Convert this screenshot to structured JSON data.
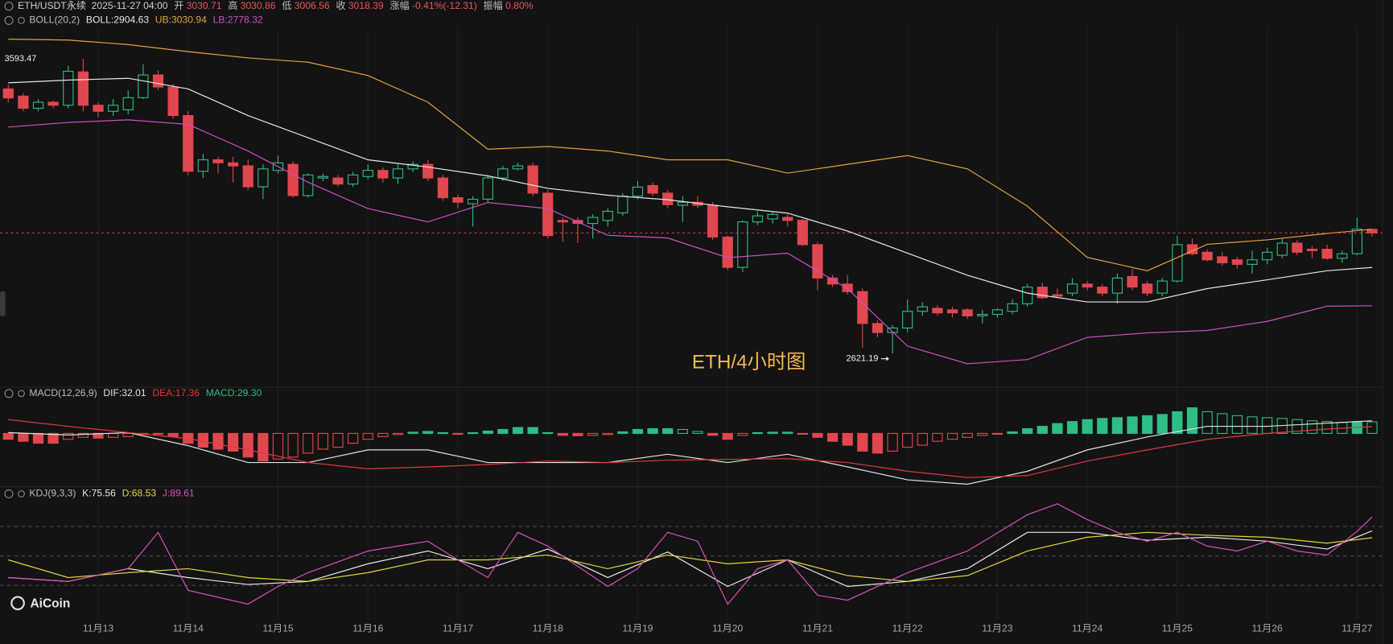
{
  "header": {
    "symbol": "ETH/USDT永续",
    "time": "2025-11-27 04:00",
    "fields": [
      {
        "label": "开",
        "value": "3030.71"
      },
      {
        "label": "高",
        "value": "3030.86"
      },
      {
        "label": "低",
        "value": "3006.56"
      },
      {
        "label": "收",
        "value": "3018.39"
      },
      {
        "label": "涨幅",
        "value": "-0.41%(-12.31)"
      },
      {
        "label": "振幅",
        "value": "0.80%"
      }
    ]
  },
  "logo": "AiCoin",
  "chart_data": [
    {
      "type": "candlestick",
      "indicator": "BOLL(20,2)",
      "watermark": "ETH/4小时图",
      "categories": [
        null,
        null,
        null,
        null,
        null,
        null,
        "11月13",
        null,
        null,
        null,
        null,
        null,
        "11月14",
        null,
        null,
        null,
        null,
        null,
        "11月15",
        null,
        null,
        null,
        null,
        null,
        "11月16",
        null,
        null,
        null,
        null,
        null,
        "11月17",
        null,
        null,
        null,
        null,
        null,
        "11月18",
        null,
        null,
        null,
        null,
        null,
        "11月19",
        null,
        null,
        null,
        null,
        null,
        "11月20",
        null,
        null,
        null,
        null,
        null,
        "11月21",
        null,
        null,
        null,
        null,
        null,
        "11月22",
        null,
        null,
        null,
        null,
        null,
        "11月23",
        null,
        null,
        null,
        null,
        null,
        "11月24",
        null,
        null,
        null,
        null,
        null,
        "11月25",
        null,
        null,
        null,
        null,
        null,
        "11月26",
        null,
        null,
        null,
        null,
        null,
        "11月27",
        null
      ],
      "open": [
        3494,
        3470,
        3430,
        3450,
        3440,
        3550,
        3440,
        3420,
        3425,
        3465,
        3540,
        3500,
        3406,
        3222,
        3260,
        3250,
        3240,
        3171,
        3225,
        3245,
        3142,
        3200,
        3200,
        3180,
        3205,
        3225,
        3200,
        3230,
        3245,
        3200,
        3135,
        3115,
        3130,
        3200,
        3230,
        3240,
        3150,
        3060,
        3060,
        3050,
        3060,
        3085,
        3140,
        3175,
        3150,
        3110,
        3120,
        3110,
        3005,
        2905,
        3055,
        3065,
        3070,
        3060,
        2980,
        2870,
        2850,
        2825,
        2720,
        2690,
        2705,
        2760,
        2770,
        2765,
        2765,
        2745,
        2750,
        2760,
        2785,
        2840,
        2815,
        2820,
        2850,
        2840,
        2820,
        2875,
        2850,
        2820,
        2860,
        2980,
        2955,
        2940,
        2930,
        2915,
        2930,
        2945,
        2985,
        2965,
        2965,
        2935,
        2950,
        3030.71
      ],
      "high": [
        3508,
        3480,
        3460,
        3455,
        3570,
        3593.47,
        3450,
        3460,
        3490,
        3575,
        3555,
        3510,
        3420,
        3280,
        3270,
        3270,
        3260,
        3245,
        3275,
        3255,
        3215,
        3215,
        3210,
        3220,
        3245,
        3235,
        3245,
        3255,
        3260,
        3210,
        3145,
        3140,
        3210,
        3240,
        3250,
        3250,
        3160,
        3070,
        3070,
        3080,
        3100,
        3150,
        3190,
        3185,
        3160,
        3140,
        3140,
        3120,
        3010,
        3060,
        3090,
        3090,
        3080,
        3065,
        2990,
        2880,
        2880,
        2835,
        2730,
        2715,
        2800,
        2790,
        2780,
        2775,
        2770,
        2765,
        2770,
        2800,
        2850,
        2855,
        2835,
        2870,
        2860,
        2850,
        2885,
        2900,
        2860,
        2870,
        3010,
        3000,
        2965,
        2955,
        2940,
        2960,
        2970,
        3000,
        2995,
        2975,
        2980,
        2960,
        3070,
        3030.86
      ],
      "low": [
        3449,
        3420,
        3420,
        3430,
        3430,
        3420,
        3400,
        3405,
        3410,
        3460,
        3490,
        3395,
        3210,
        3200,
        3215,
        3185,
        3160,
        3130,
        3215,
        3135,
        3135,
        3190,
        3170,
        3170,
        3195,
        3185,
        3180,
        3220,
        3190,
        3125,
        3100,
        3040,
        3120,
        3190,
        3225,
        3140,
        3000,
        2990,
        2985,
        3000,
        3040,
        3075,
        3130,
        3140,
        3100,
        3055,
        3100,
        2995,
        2895,
        2890,
        3045,
        3050,
        3040,
        2975,
        2830,
        2840,
        2815,
        2640,
        2675,
        2621.19,
        2690,
        2745,
        2745,
        2740,
        2735,
        2720,
        2740,
        2750,
        2775,
        2800,
        2805,
        2810,
        2830,
        2810,
        2785,
        2830,
        2810,
        2810,
        2855,
        2945,
        2925,
        2910,
        2900,
        2885,
        2915,
        2935,
        2945,
        2935,
        2930,
        2920,
        2945,
        3006.56
      ],
      "close": [
        3464,
        3430,
        3450,
        3440,
        3552,
        3440,
        3420,
        3440,
        3465,
        3540,
        3500,
        3406,
        3222,
        3260,
        3250,
        3240,
        3171,
        3230,
        3250,
        3142,
        3210,
        3205,
        3180,
        3210,
        3225,
        3200,
        3230,
        3245,
        3200,
        3135,
        3120,
        3130,
        3200,
        3230,
        3240,
        3150,
        3010,
        3055,
        3050,
        3070,
        3090,
        3140,
        3170,
        3150,
        3112,
        3120,
        3110,
        3005,
        2905,
        3055,
        3075,
        3080,
        3060,
        2980,
        2870,
        2850,
        2825,
        2720,
        2690,
        2705,
        2760,
        2775,
        2755,
        2755,
        2745,
        2750,
        2765,
        2785,
        2840,
        2805,
        2810,
        2850,
        2840,
        2820,
        2870,
        2840,
        2820,
        2860,
        2980,
        2950,
        2930,
        2920,
        2915,
        2930,
        2955,
        2985,
        2955,
        2960,
        2935,
        2950,
        3031,
        3018.39
      ],
      "up_color": "#2ebd85",
      "down_color": "#e0474f",
      "ylim": [
        2527,
        3670
      ],
      "high_label": "3593.47",
      "low_label": "2621.19",
      "last_price_line": true,
      "series": [
        {
          "name": "BOLL:2904.63",
          "color": "#e6e6e6",
          "x": [
            0,
            4,
            8,
            12,
            16,
            20,
            24,
            28,
            32,
            36,
            40,
            44,
            48,
            52,
            56,
            60,
            64,
            68,
            72,
            76,
            80,
            84,
            88,
            91
          ],
          "values": [
            3514,
            3523,
            3529,
            3494,
            3406,
            3333,
            3260,
            3236,
            3207,
            3166,
            3143,
            3128,
            3105,
            3084,
            3025,
            2952,
            2879,
            2820,
            2791,
            2791,
            2835,
            2864,
            2894,
            2904.63
          ]
        },
        {
          "name": "UB:3030.94",
          "color": "#e3a23b",
          "x": [
            0,
            4,
            8,
            12,
            16,
            20,
            24,
            28,
            32,
            36,
            40,
            44,
            48,
            52,
            56,
            60,
            64,
            68,
            72,
            76,
            80,
            84,
            88,
            91
          ],
          "values": [
            3658,
            3655,
            3640,
            3617,
            3596,
            3582,
            3538,
            3450,
            3295,
            3304,
            3289,
            3260,
            3260,
            3216,
            3245,
            3274,
            3230,
            3107,
            2938,
            2894,
            2981,
            2996,
            3017,
            3030.94
          ]
        },
        {
          "name": "LB:2778.32",
          "color": "#cc4fc4",
          "x": [
            0,
            4,
            8,
            12,
            16,
            20,
            24,
            28,
            32,
            36,
            40,
            44,
            48,
            52,
            56,
            60,
            64,
            68,
            72,
            76,
            80,
            84,
            88,
            91
          ],
          "values": [
            3368,
            3383,
            3392,
            3377,
            3289,
            3186,
            3099,
            3055,
            3119,
            3099,
            3011,
            3002,
            2937,
            2952,
            2835,
            2645,
            2587,
            2601,
            2674,
            2689,
            2697,
            2727,
            2777,
            2778.32
          ]
        }
      ]
    },
    {
      "type": "macd",
      "indicator": "MACD(12,26,9)",
      "ylim": [
        -140,
        90
      ],
      "series": [
        {
          "name": "DIF:32.01",
          "color": "#e0e0e0",
          "x": [
            0,
            4,
            8,
            12,
            16,
            20,
            24,
            28,
            32,
            36,
            40,
            44,
            48,
            52,
            56,
            60,
            64,
            68,
            72,
            76,
            80,
            84,
            88,
            91
          ],
          "values": [
            2,
            -4,
            2,
            -31,
            -74,
            -74,
            -42,
            -42,
            -74,
            -74,
            -74,
            -53,
            -74,
            -53,
            -85,
            -118,
            -129,
            -96,
            -42,
            -9,
            18,
            18,
            26,
            32.01
          ]
        },
        {
          "name": "DEA:17.36",
          "color": "#e0393e",
          "x": [
            0,
            4,
            8,
            12,
            16,
            20,
            24,
            28,
            32,
            36,
            40,
            44,
            48,
            52,
            56,
            60,
            64,
            68,
            72,
            76,
            80,
            84,
            88,
            91
          ],
          "values": [
            35,
            18,
            2,
            -13,
            -42,
            -74,
            -90,
            -85,
            -79,
            -70,
            -74,
            -68,
            -66,
            -64,
            -74,
            -96,
            -112,
            -107,
            -70,
            -42,
            -15,
            0,
            11,
            17.36
          ]
        }
      ],
      "histogram": {
        "name": "MACD:29.30",
        "up_color": "#2ebd85",
        "down_color": "#e0474f",
        "values": [
          -15,
          -20,
          -25,
          -25,
          -15,
          -10,
          -12,
          -10,
          -8,
          -3,
          -2,
          -8,
          -25,
          -35,
          -40,
          -45,
          -60,
          -70,
          -65,
          -60,
          -50,
          -40,
          -35,
          -25,
          -15,
          -8,
          -3,
          3,
          5,
          2,
          -2,
          2,
          6,
          10,
          15,
          15,
          2,
          -5,
          -6,
          -5,
          -3,
          4,
          10,
          12,
          12,
          10,
          5,
          -5,
          -15,
          -5,
          2,
          3,
          3,
          -2,
          -10,
          -20,
          -30,
          -45,
          -50,
          -45,
          -35,
          -30,
          -20,
          -15,
          -10,
          -5,
          -2,
          4,
          12,
          18,
          25,
          30,
          35,
          38,
          40,
          42,
          45,
          48,
          55,
          65,
          55,
          50,
          45,
          42,
          40,
          38,
          35,
          32,
          30,
          28,
          30,
          29.3
        ]
      }
    },
    {
      "type": "line",
      "indicator": "KDJ(9,3,3)",
      "ylim": [
        -17,
        105
      ],
      "reference_lines": [
        20,
        50,
        80
      ],
      "series": [
        {
          "name": "K:75.56",
          "color": "#e6e6e6",
          "x": [
            0,
            4,
            8,
            12,
            16,
            20,
            24,
            28,
            32,
            36,
            40,
            44,
            48,
            52,
            56,
            60,
            64,
            68,
            72,
            76,
            80,
            84,
            88,
            91
          ],
          "values": [
            28,
            24,
            37,
            28,
            21,
            24,
            42,
            55,
            37,
            57,
            28,
            54,
            19,
            46,
            19,
            24,
            37,
            74,
            74,
            66,
            69,
            65,
            57,
            75.56
          ]
        },
        {
          "name": "D:68.53",
          "color": "#e3d43a",
          "x": [
            0,
            4,
            8,
            12,
            16,
            20,
            24,
            28,
            32,
            36,
            40,
            44,
            48,
            52,
            56,
            60,
            64,
            68,
            72,
            76,
            80,
            84,
            88,
            91
          ],
          "values": [
            46,
            28,
            33,
            37,
            28,
            24,
            33,
            46,
            46,
            51,
            37,
            51,
            42,
            46,
            30,
            24,
            30,
            55,
            69,
            74,
            71,
            69,
            63,
            68.53
          ]
        },
        {
          "name": "J:89.61",
          "color": "#d94fc0",
          "x": [
            0,
            4,
            8,
            10,
            12,
            16,
            18,
            20,
            24,
            28,
            30,
            32,
            34,
            36,
            40,
            42,
            44,
            46,
            48,
            50,
            52,
            54,
            56,
            60,
            64,
            68,
            70,
            72,
            74,
            76,
            78,
            80,
            82,
            84,
            86,
            88,
            90,
            91
          ],
          "values": [
            28,
            24,
            37,
            74,
            15,
            1,
            19,
            33,
            55,
            65,
            46,
            28,
            74,
            60,
            19,
            37,
            74,
            65,
            1,
            37,
            46,
            10,
            5,
            33,
            55,
            92,
            103,
            87,
            74,
            65,
            74,
            60,
            55,
            65,
            55,
            51,
            75,
            89.61
          ]
        }
      ]
    }
  ]
}
